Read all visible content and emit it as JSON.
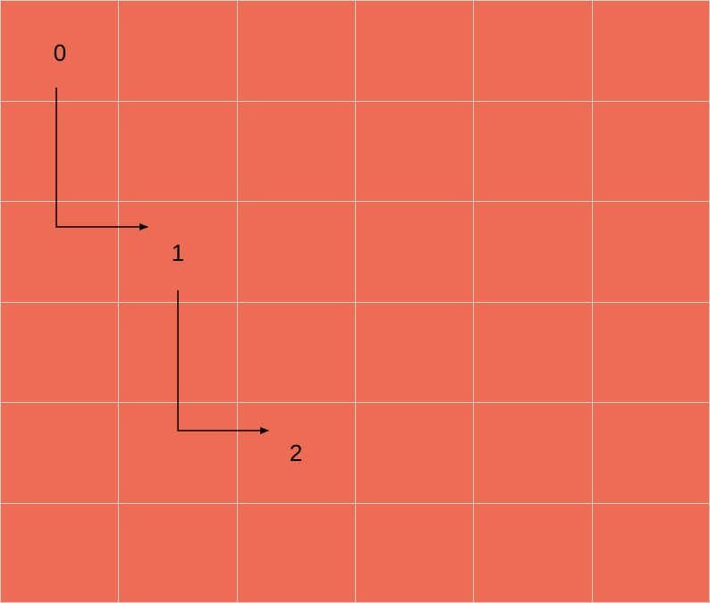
{
  "grid": {
    "rows": 6,
    "cols": 6,
    "cell_color": "#EC6C54",
    "line_color": "#CFCFCF"
  },
  "nodes": [
    {
      "label": "0",
      "row": 0,
      "col": 0
    },
    {
      "label": "1",
      "row": 2,
      "col": 1
    },
    {
      "label": "2",
      "row": 4,
      "col": 2
    }
  ],
  "arrow_color": "#000000"
}
